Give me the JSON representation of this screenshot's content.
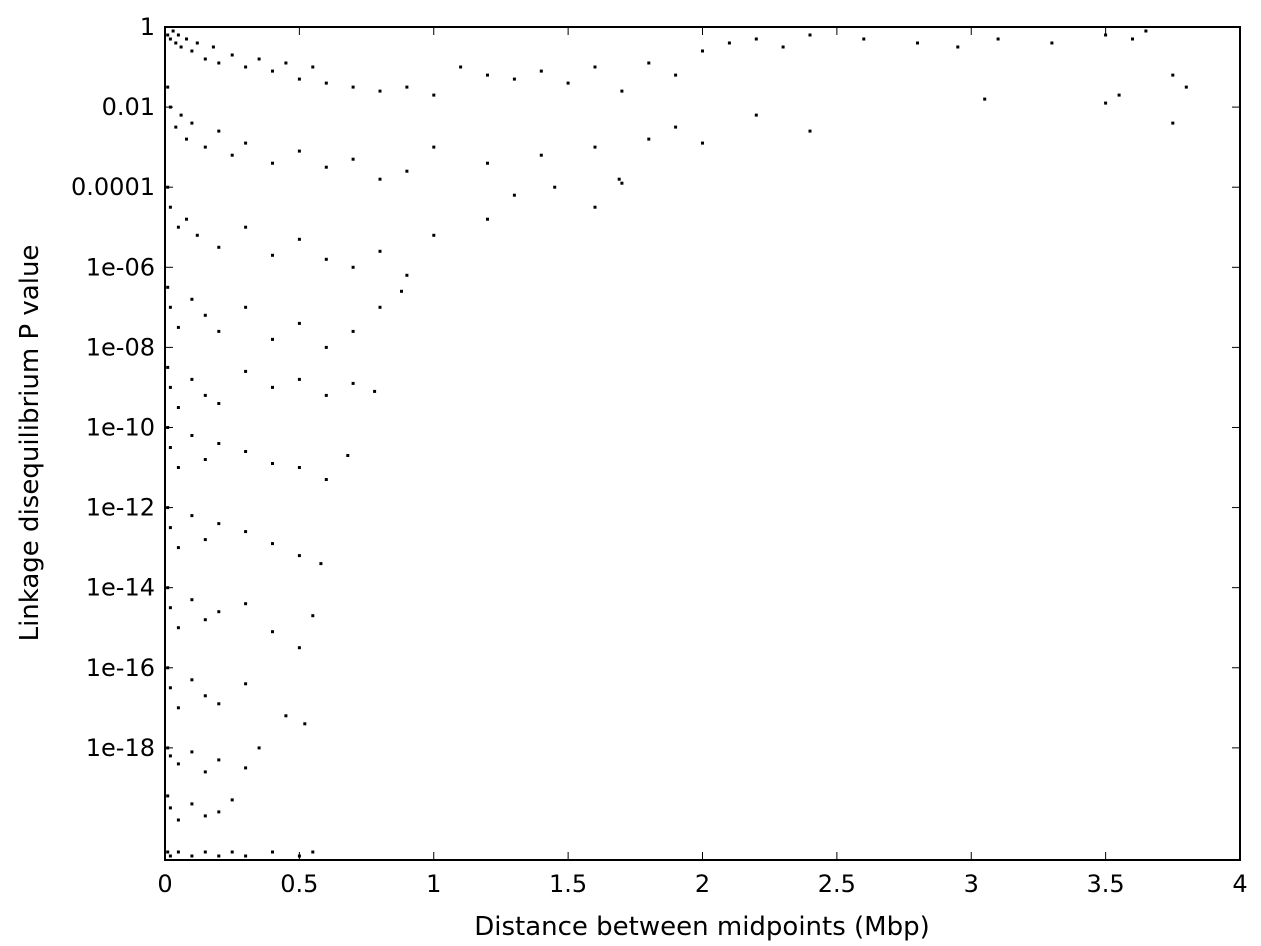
{
  "chart_data": {
    "type": "scatter",
    "title": "",
    "xlabel": "Distance between midpoints (Mbp)",
    "ylabel": "Linkage disequilibrium P value",
    "x_scale": "linear",
    "y_scale": "log",
    "xlim": [
      0,
      4
    ],
    "ylim_log10": [
      -20.8,
      0
    ],
    "xticks": [
      {
        "value": 0,
        "label": "0"
      },
      {
        "value": 0.5,
        "label": "0.5"
      },
      {
        "value": 1,
        "label": "1"
      },
      {
        "value": 1.5,
        "label": "1.5"
      },
      {
        "value": 2,
        "label": "2"
      },
      {
        "value": 2.5,
        "label": "2.5"
      },
      {
        "value": 3,
        "label": "3"
      },
      {
        "value": 3.5,
        "label": "3.5"
      },
      {
        "value": 4,
        "label": "4"
      }
    ],
    "yticks": [
      {
        "value": 1,
        "label": "1"
      },
      {
        "value": 0.01,
        "label": "0.01"
      },
      {
        "value": 0.0001,
        "label": "0.0001"
      },
      {
        "value": 1e-06,
        "label": "1e-06"
      },
      {
        "value": 1e-08,
        "label": "1e-08"
      },
      {
        "value": 1e-10,
        "label": "1e-10"
      },
      {
        "value": 1e-12,
        "label": "1e-12"
      },
      {
        "value": 1e-14,
        "label": "1e-14"
      },
      {
        "value": 1e-16,
        "label": "1e-16"
      },
      {
        "value": 1e-18,
        "label": "1e-18"
      }
    ],
    "grid": false,
    "legend": "none",
    "marker_color": "#000000",
    "series": [
      {
        "x": [
          0.01,
          0.02,
          0.03,
          0.04,
          0.05,
          0.06,
          0.08,
          0.1,
          0.12,
          0.15,
          0.18,
          0.2,
          0.25,
          0.3,
          0.35,
          0.4,
          0.45,
          0.5,
          0.55,
          0.6,
          0.7,
          0.8,
          0.9,
          1.0,
          1.1,
          1.2,
          1.3,
          1.4,
          1.5,
          1.6,
          1.7,
          1.8,
          1.9,
          2.0,
          2.1,
          2.2,
          2.3,
          2.4,
          2.6,
          2.8,
          2.95,
          3.1,
          3.3,
          3.5,
          3.6,
          3.65,
          3.75,
          3.8,
          0.01,
          0.02,
          0.04,
          0.06,
          0.08,
          0.1,
          0.15,
          0.2,
          0.25,
          0.3,
          0.4,
          0.5,
          0.6,
          0.7,
          0.8,
          0.9,
          1.0,
          1.2,
          1.4,
          1.6,
          1.69,
          1.8,
          1.9,
          2.0,
          2.2,
          2.4,
          3.05,
          3.5,
          3.55,
          3.75,
          0.01,
          0.02,
          0.05,
          0.08,
          0.12,
          0.2,
          0.3,
          0.4,
          0.5,
          0.6,
          0.7,
          0.8,
          0.9,
          1.0,
          1.2,
          1.3,
          1.45,
          1.6,
          1.7,
          0.01,
          0.02,
          0.05,
          0.1,
          0.15,
          0.2,
          0.3,
          0.4,
          0.5,
          0.6,
          0.7,
          0.8,
          0.88,
          0.01,
          0.02,
          0.05,
          0.1,
          0.15,
          0.2,
          0.3,
          0.4,
          0.5,
          0.6,
          0.7,
          0.78,
          0.01,
          0.02,
          0.05,
          0.1,
          0.15,
          0.2,
          0.3,
          0.4,
          0.5,
          0.6,
          0.68,
          0.01,
          0.02,
          0.05,
          0.1,
          0.15,
          0.2,
          0.3,
          0.4,
          0.5,
          0.58,
          0.01,
          0.02,
          0.05,
          0.1,
          0.15,
          0.2,
          0.3,
          0.4,
          0.5,
          0.55,
          0.01,
          0.02,
          0.05,
          0.1,
          0.15,
          0.2,
          0.3,
          0.45,
          0.52,
          0.01,
          0.02,
          0.05,
          0.1,
          0.15,
          0.2,
          0.3,
          0.35,
          0.01,
          0.02,
          0.05,
          0.1,
          0.15,
          0.2,
          0.25,
          0.01,
          0.02,
          0.05,
          0.1,
          0.15,
          0.2,
          0.25,
          0.3,
          0.4,
          0.5,
          0.55
        ],
        "y_log10": [
          -0.2,
          -0.3,
          -0.1,
          -0.4,
          -0.2,
          -0.5,
          -0.3,
          -0.6,
          -0.4,
          -0.8,
          -0.5,
          -0.9,
          -0.7,
          -1.0,
          -0.8,
          -1.1,
          -0.9,
          -1.3,
          -1.0,
          -1.4,
          -1.5,
          -1.6,
          -1.5,
          -1.7,
          -1.0,
          -1.2,
          -1.3,
          -1.1,
          -1.4,
          -1.0,
          -1.6,
          -0.9,
          -1.2,
          -0.6,
          -0.4,
          -0.3,
          -0.5,
          -0.2,
          -0.3,
          -0.4,
          -0.5,
          -0.3,
          -0.4,
          -0.2,
          -0.3,
          -0.1,
          -1.2,
          -1.5,
          -1.5,
          -2.0,
          -2.5,
          -2.2,
          -2.8,
          -2.4,
          -3.0,
          -2.6,
          -3.2,
          -2.9,
          -3.4,
          -3.1,
          -3.5,
          -3.3,
          -3.8,
          -3.6,
          -3.0,
          -3.4,
          -3.2,
          -3.0,
          -3.8,
          -2.8,
          -2.5,
          -2.9,
          -2.2,
          -2.6,
          -1.8,
          -1.9,
          -1.7,
          -2.4,
          -4.0,
          -4.5,
          -5.0,
          -4.8,
          -5.2,
          -5.5,
          -5.0,
          -5.7,
          -5.3,
          -5.8,
          -6.0,
          -5.6,
          -6.2,
          -5.2,
          -4.8,
          -4.2,
          -4.0,
          -4.5,
          -3.9,
          -6.5,
          -7.0,
          -7.5,
          -6.8,
          -7.2,
          -7.6,
          -7.0,
          -7.8,
          -7.4,
          -8.0,
          -7.6,
          -7.0,
          -6.6,
          -8.5,
          -9.0,
          -9.5,
          -8.8,
          -9.2,
          -9.4,
          -8.6,
          -9.0,
          -8.8,
          -9.2,
          -8.9,
          -9.1,
          -10.0,
          -10.5,
          -11.0,
          -10.2,
          -10.8,
          -10.4,
          -10.6,
          -10.9,
          -11.0,
          -11.3,
          -10.7,
          -12.0,
          -12.5,
          -13.0,
          -12.2,
          -12.8,
          -12.4,
          -12.6,
          -12.9,
          -13.2,
          -13.4,
          -14.0,
          -14.5,
          -15.0,
          -14.3,
          -14.8,
          -14.6,
          -14.4,
          -15.1,
          -15.5,
          -14.7,
          -16.0,
          -16.5,
          -17.0,
          -16.3,
          -16.7,
          -16.9,
          -16.4,
          -17.2,
          -17.4,
          -18.0,
          -18.2,
          -18.4,
          -18.1,
          -18.6,
          -18.3,
          -18.5,
          -18.0,
          -19.2,
          -19.5,
          -19.8,
          -19.4,
          -19.7,
          -19.6,
          -19.3,
          -20.6,
          -20.7,
          -20.6,
          -20.7,
          -20.6,
          -20.7,
          -20.6,
          -20.7,
          -20.6,
          -20.7,
          -20.6
        ]
      }
    ]
  }
}
